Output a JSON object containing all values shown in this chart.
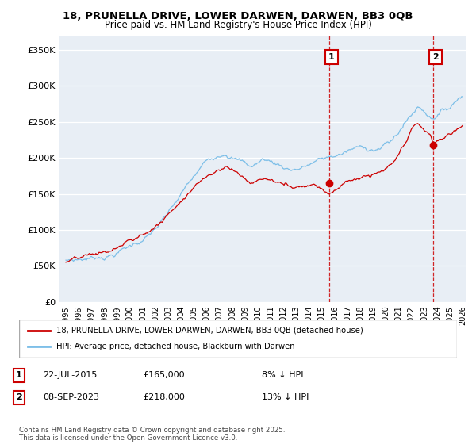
{
  "title_line1": "18, PRUNELLA DRIVE, LOWER DARWEN, DARWEN, BB3 0QB",
  "title_line2": "Price paid vs. HM Land Registry's House Price Index (HPI)",
  "ylabel_ticks": [
    "£0",
    "£50K",
    "£100K",
    "£150K",
    "£200K",
    "£250K",
    "£300K",
    "£350K"
  ],
  "ytick_values": [
    0,
    50000,
    100000,
    150000,
    200000,
    250000,
    300000,
    350000
  ],
  "ylim": [
    0,
    370000
  ],
  "x_start_year": 1995,
  "x_end_year": 2026,
  "sale1_date_label": "22-JUL-2015",
  "sale1_price": 165000,
  "sale1_pct": "8% ↓ HPI",
  "sale1_x": 2015.55,
  "sale2_date_label": "08-SEP-2023",
  "sale2_price": 218000,
  "sale2_pct": "13% ↓ HPI",
  "sale2_x": 2023.69,
  "legend_label1": "18, PRUNELLA DRIVE, LOWER DARWEN, DARWEN, BB3 0QB (detached house)",
  "legend_label2": "HPI: Average price, detached house, Blackburn with Darwen",
  "annotation1": "1",
  "annotation2": "2",
  "line_color_sale": "#cc0000",
  "line_color_hpi": "#7dbfe8",
  "vline_color": "#cc0000",
  "marker_color_sale": "#cc0000",
  "background_color": "#e8eef5",
  "grid_color": "#ffffff",
  "annotation_box_edge": "#cc0000",
  "footnote": "Contains HM Land Registry data © Crown copyright and database right 2025.\nThis data is licensed under the Open Government Licence v3.0."
}
